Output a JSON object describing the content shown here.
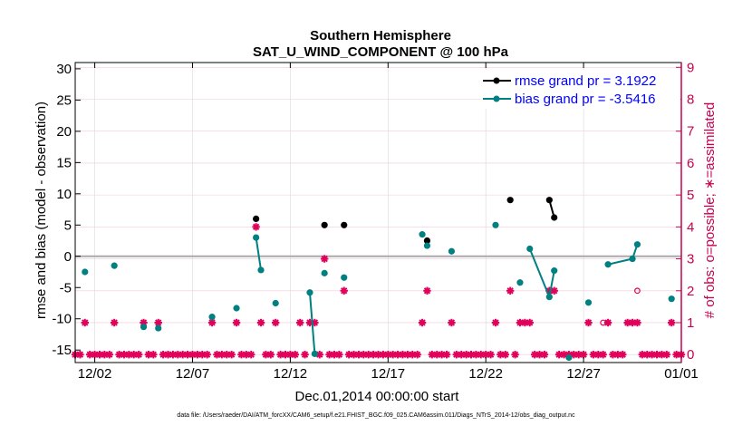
{
  "chart_data": {
    "type": "scatter",
    "title_line1": "Southern Hemisphere",
    "title_line2": "SAT_U_WIND_COMPONENT @ 100 hPa",
    "xlabel": "Dec.01,2014 00:00:00 start",
    "ylabel": "rmse and bias (model - observation)",
    "ylabel_right": "# of obs: o=possible; ∗=assimilated",
    "footnote": "data file: /Users/raeder/DAI/ATM_forcXX/CAM6_setup/f.e21.FHIST_BGC.f09_025.CAM6assim.011/Diags_NTrS_2014-12/obs_diag_output.nc",
    "xlim": [
      0.5,
      31.5
    ],
    "ylim": [
      -17,
      31
    ],
    "ylim_right": [
      -0.25,
      9.15
    ],
    "x_ticks": [
      1.5,
      6.5,
      11.5,
      16.5,
      21.5,
      26.5,
      31.5
    ],
    "x_tick_labels": [
      "12/02",
      "12/07",
      "12/12",
      "12/17",
      "12/22",
      "12/27",
      "01/01"
    ],
    "y_ticks": [
      -15,
      -10,
      -5,
      0,
      5,
      10,
      15,
      20,
      25,
      30
    ],
    "y_tick_labels": [
      "-15",
      "-10",
      "-5",
      "0",
      "5",
      "10",
      "15",
      "20",
      "25",
      "30"
    ],
    "y_right_ticks": [
      0,
      1,
      2,
      3,
      4,
      5,
      6,
      7,
      8,
      9
    ],
    "y_right_tick_labels": [
      "0",
      "1",
      "2",
      "3",
      "4",
      "5",
      "6",
      "7",
      "8",
      "9"
    ],
    "colors": {
      "rmse": "#000000",
      "bias": "#008080",
      "obs": "#e0005a",
      "zero_line": "#aaaaaa",
      "grid": "#d8d8d8",
      "right_axis": "#c8004f",
      "legend_text": "#0000ff"
    },
    "series": [
      {
        "name": "rmse",
        "legend": "rmse grand pr = 3.1922",
        "points": [
          [
            9.75,
            6.0
          ],
          [
            13.25,
            5.0
          ],
          [
            14.25,
            5.0
          ],
          [
            18.5,
            2.5
          ],
          [
            22.75,
            9.0
          ],
          [
            24.75,
            9.0
          ],
          [
            25.0,
            6.2
          ]
        ],
        "segments": [
          [
            5,
            6
          ]
        ]
      },
      {
        "name": "bias",
        "legend": "bias grand pr = -3.5416",
        "points": [
          [
            1.0,
            -2.5
          ],
          [
            2.5,
            -1.5
          ],
          [
            4.0,
            -11.3
          ],
          [
            4.75,
            -11.5
          ],
          [
            7.5,
            -9.7
          ],
          [
            8.75,
            -8.3
          ],
          [
            9.75,
            3.0
          ],
          [
            10.0,
            -2.2
          ],
          [
            10.75,
            -7.5
          ],
          [
            12.5,
            -5.8
          ],
          [
            12.75,
            -15.6
          ],
          [
            13.25,
            -2.7
          ],
          [
            14.25,
            -3.4
          ],
          [
            18.25,
            3.5
          ],
          [
            18.5,
            1.7
          ],
          [
            19.75,
            0.8
          ],
          [
            22.0,
            5.0
          ],
          [
            23.25,
            -4.2
          ],
          [
            23.75,
            1.2
          ],
          [
            24.75,
            -6.5
          ],
          [
            25.0,
            -2.3
          ],
          [
            25.75,
            -16.2
          ],
          [
            26.75,
            -7.4
          ],
          [
            27.75,
            -1.3
          ],
          [
            29.0,
            -0.4
          ],
          [
            29.25,
            1.9
          ],
          [
            31.0,
            -6.8
          ]
        ],
        "segments": [
          [
            6,
            7
          ],
          [
            9,
            10
          ],
          [
            18,
            19
          ],
          [
            19,
            20
          ],
          [
            23,
            24
          ],
          [
            24,
            25
          ]
        ]
      },
      {
        "name": "obs_assimilated",
        "points": [
          [
            0.5,
            0
          ],
          [
            0.75,
            0
          ],
          [
            1.0,
            1
          ],
          [
            1.25,
            0
          ],
          [
            1.5,
            0
          ],
          [
            1.75,
            0
          ],
          [
            2.0,
            0
          ],
          [
            2.25,
            0
          ],
          [
            2.5,
            1
          ],
          [
            2.75,
            0
          ],
          [
            3.0,
            0
          ],
          [
            3.25,
            0
          ],
          [
            3.5,
            0
          ],
          [
            3.75,
            0
          ],
          [
            4.0,
            1
          ],
          [
            4.25,
            0
          ],
          [
            4.5,
            0
          ],
          [
            4.75,
            1
          ],
          [
            5.0,
            0
          ],
          [
            5.25,
            0
          ],
          [
            5.5,
            0
          ],
          [
            5.75,
            0
          ],
          [
            6.0,
            0
          ],
          [
            6.25,
            0
          ],
          [
            6.5,
            0
          ],
          [
            6.75,
            0
          ],
          [
            7.0,
            0
          ],
          [
            7.25,
            0
          ],
          [
            7.5,
            1
          ],
          [
            7.75,
            0
          ],
          [
            8.0,
            0
          ],
          [
            8.25,
            0
          ],
          [
            8.5,
            0
          ],
          [
            8.75,
            1
          ],
          [
            9.0,
            0
          ],
          [
            9.25,
            0
          ],
          [
            9.5,
            0
          ],
          [
            9.75,
            4
          ],
          [
            10.0,
            1
          ],
          [
            10.25,
            0
          ],
          [
            10.5,
            0
          ],
          [
            10.75,
            1
          ],
          [
            11.0,
            0
          ],
          [
            11.25,
            0
          ],
          [
            11.5,
            0
          ],
          [
            11.75,
            0
          ],
          [
            12.0,
            1
          ],
          [
            12.25,
            0
          ],
          [
            12.5,
            1
          ],
          [
            12.75,
            1
          ],
          [
            13.0,
            0
          ],
          [
            13.25,
            3
          ],
          [
            13.5,
            0
          ],
          [
            13.75,
            0
          ],
          [
            14.0,
            0
          ],
          [
            14.25,
            2
          ],
          [
            14.5,
            0
          ],
          [
            14.75,
            0
          ],
          [
            15.0,
            0
          ],
          [
            15.25,
            0
          ],
          [
            15.5,
            0
          ],
          [
            15.75,
            0
          ],
          [
            16.0,
            0
          ],
          [
            16.25,
            0
          ],
          [
            16.5,
            0
          ],
          [
            16.75,
            0
          ],
          [
            17.0,
            0
          ],
          [
            17.25,
            0
          ],
          [
            17.5,
            0
          ],
          [
            17.75,
            0
          ],
          [
            18.0,
            0
          ],
          [
            18.25,
            1
          ],
          [
            18.5,
            2
          ],
          [
            18.75,
            0
          ],
          [
            19.0,
            0
          ],
          [
            19.25,
            0
          ],
          [
            19.5,
            0
          ],
          [
            19.75,
            1
          ],
          [
            20.0,
            0
          ],
          [
            20.25,
            0
          ],
          [
            20.5,
            0
          ],
          [
            20.75,
            0
          ],
          [
            21.0,
            0
          ],
          [
            21.25,
            0
          ],
          [
            21.5,
            0
          ],
          [
            21.75,
            0
          ],
          [
            22.0,
            1
          ],
          [
            22.25,
            0
          ],
          [
            22.5,
            0
          ],
          [
            22.75,
            2
          ],
          [
            23.0,
            0
          ],
          [
            23.25,
            1
          ],
          [
            23.5,
            1
          ],
          [
            23.75,
            1
          ],
          [
            24.0,
            0
          ],
          [
            24.25,
            0
          ],
          [
            24.5,
            0
          ],
          [
            24.75,
            2
          ],
          [
            25.0,
            2
          ],
          [
            25.25,
            0
          ],
          [
            25.5,
            0
          ],
          [
            25.75,
            0
          ],
          [
            26.0,
            0
          ],
          [
            26.25,
            0
          ],
          [
            26.5,
            0
          ],
          [
            26.75,
            1
          ],
          [
            27.0,
            0
          ],
          [
            27.25,
            0
          ],
          [
            27.5,
            0
          ],
          [
            27.75,
            1
          ],
          [
            28.0,
            0
          ],
          [
            28.25,
            0
          ],
          [
            28.5,
            0
          ],
          [
            28.75,
            1
          ],
          [
            29.0,
            1
          ],
          [
            29.25,
            1
          ],
          [
            29.5,
            0
          ],
          [
            29.75,
            0
          ],
          [
            30.0,
            0
          ],
          [
            30.25,
            0
          ],
          [
            30.5,
            0
          ],
          [
            30.75,
            0
          ],
          [
            31.0,
            1
          ],
          [
            31.25,
            0
          ],
          [
            31.5,
            0
          ]
        ]
      },
      {
        "name": "obs_possible_only",
        "points": [
          [
            27.5,
            1
          ],
          [
            29.25,
            2
          ]
        ]
      }
    ]
  }
}
